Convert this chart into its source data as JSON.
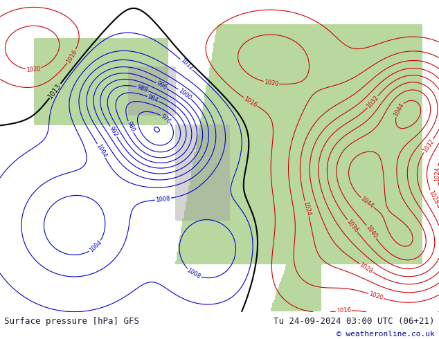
{
  "title_left": "Surface pressure [hPa] GFS",
  "title_right": "Tu 24-09-2024 03:00 UTC (06+21)",
  "copyright": "© weatheronline.co.uk",
  "bg_color": "#d0d8e8",
  "land_color": "#b8d8a0",
  "gray_color": "#a0a0a0",
  "text_color": "#1a1a2e",
  "copyright_color": "#00008B",
  "figsize": [
    6.34,
    4.9
  ],
  "dpi": 100,
  "footer_bg": "#d0d4e0",
  "contour_blue_color": "#0000cc",
  "contour_red_color": "#cc0000",
  "contour_black_color": "#000000"
}
